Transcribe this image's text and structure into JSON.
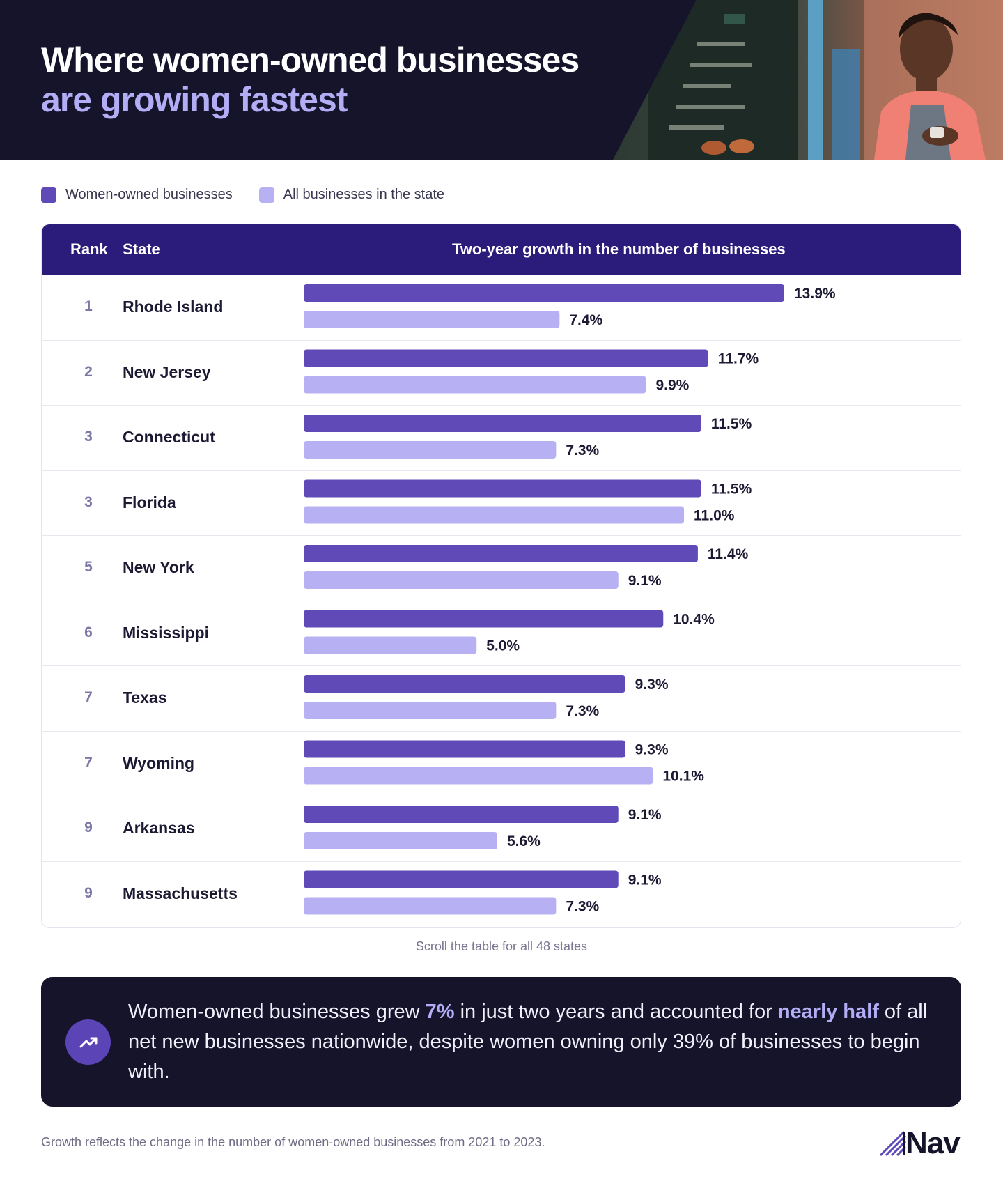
{
  "header": {
    "title_line1": "Where women-owned businesses",
    "title_line2": "are growing fastest"
  },
  "legend": {
    "women_label": "Women-owned businesses",
    "all_label": "All businesses in the state"
  },
  "colors": {
    "women": "#5f4ab8",
    "all": "#b7b0f2",
    "header_bg": "#2b1b7a",
    "dark": "#15142b",
    "accent": "#b3adf5"
  },
  "table": {
    "col_rank": "Rank",
    "col_state": "State",
    "col_growth": "Two-year growth in the number of businesses"
  },
  "chart_data": {
    "type": "bar",
    "title": "Two-year growth in the number of businesses",
    "orientation": "horizontal",
    "unit": "%",
    "xlim": [
      0,
      13.9
    ],
    "categories": [
      "Rhode Island",
      "New Jersey",
      "Connecticut",
      "Florida",
      "New York",
      "Mississippi",
      "Texas",
      "Wyoming",
      "Arkansas",
      "Massachusetts"
    ],
    "ranks": [
      "1",
      "2",
      "3",
      "3",
      "5",
      "6",
      "7",
      "7",
      "9",
      "9"
    ],
    "series": [
      {
        "name": "Women-owned businesses",
        "values": [
          13.9,
          11.7,
          11.5,
          11.5,
          11.4,
          10.4,
          9.3,
          9.3,
          9.1,
          9.1
        ],
        "labels": [
          "13.9%",
          "11.7%",
          "11.5%",
          "11.5%",
          "11.4%",
          "10.4%",
          "9.3%",
          "9.3%",
          "9.1%",
          "9.1%"
        ]
      },
      {
        "name": "All businesses in the state",
        "values": [
          7.4,
          9.9,
          7.3,
          11.0,
          9.1,
          5.0,
          7.3,
          10.1,
          5.6,
          7.3
        ],
        "labels": [
          "7.4%",
          "9.9%",
          "7.3%",
          "11.0%",
          "9.1%",
          "5.0%",
          "7.3%",
          "10.1%",
          "5.6%",
          "7.3%"
        ]
      }
    ],
    "legend": "top-left",
    "grid": false
  },
  "scroll_note": "Scroll the table for all 48 states",
  "callout": {
    "icon": "trending-up-icon",
    "text_a": "Women-owned businesses grew ",
    "highlight_a": "7%",
    "text_b": " in just two years and accounted for ",
    "highlight_b": "nearly half",
    "text_c": " of all net new businesses nationwide, despite women owning only 39% of businesses to begin with."
  },
  "footnote": "Growth reflects the change in the number of women-owned businesses from 2021 to 2023.",
  "logo": {
    "text": "Nav",
    "icon": "nav-logo-icon"
  }
}
